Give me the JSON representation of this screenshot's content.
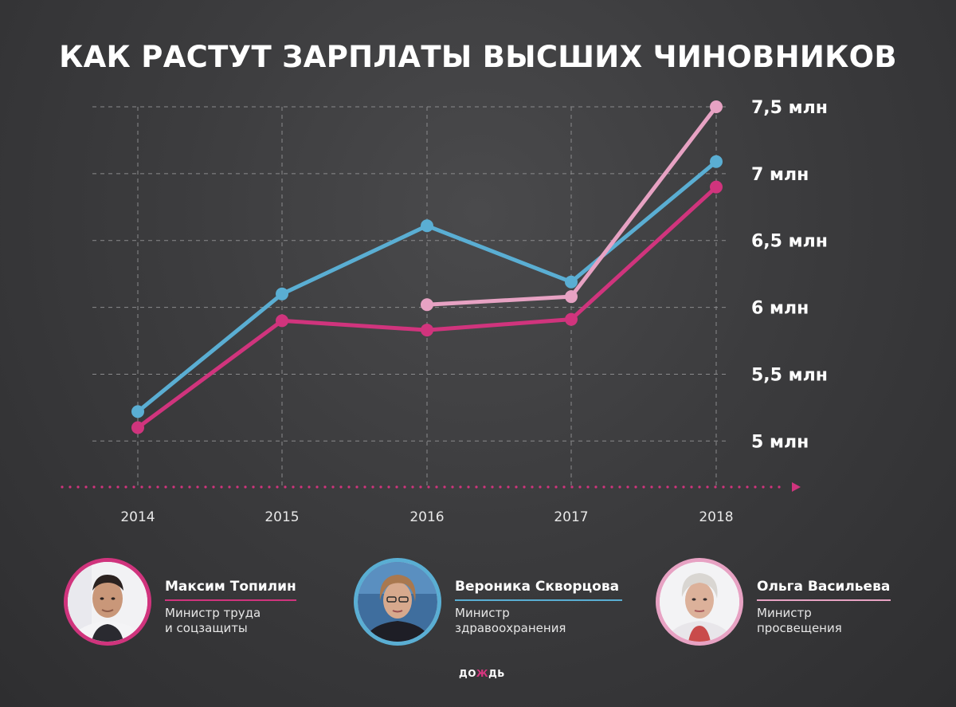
{
  "title": "КАК РАСТУТ ЗАРПЛАТЫ ВЫСШИХ ЧИНОВНИКОВ",
  "chart_data": {
    "type": "line",
    "x": [
      "2014",
      "2015",
      "2016",
      "2017",
      "2018"
    ],
    "y_ticks": [
      {
        "value": 5.0,
        "label": "5 млн"
      },
      {
        "value": 5.5,
        "label": "5,5 млн"
      },
      {
        "value": 6.0,
        "label": "6 млн"
      },
      {
        "value": 6.5,
        "label": "6,5 млн"
      },
      {
        "value": 7.0,
        "label": "7 млн"
      },
      {
        "value": 7.5,
        "label": "7,5 млн"
      }
    ],
    "ylim": [
      4.65,
      7.5
    ],
    "grid": true,
    "series": [
      {
        "name": "Вероника Скворцова",
        "color": "#5aaed3",
        "values": [
          5.22,
          6.1,
          6.61,
          6.19,
          7.09
        ]
      },
      {
        "name": "Максим Топилин",
        "color": "#d0347d",
        "values": [
          5.1,
          5.9,
          5.83,
          5.91,
          6.9
        ]
      },
      {
        "name": "Ольга Васильева",
        "color": "#e7a2c3",
        "values": [
          null,
          null,
          6.02,
          6.08,
          7.5
        ]
      }
    ]
  },
  "people": [
    {
      "name": "Максим Топилин",
      "role_line1": "Министр труда",
      "role_line2": "и соцзащиты",
      "color": "#d0347d"
    },
    {
      "name": "Вероника Скворцова",
      "role_line1": "Министр",
      "role_line2": "здравоохранения",
      "color": "#5aaed3"
    },
    {
      "name": "Ольга Васильева",
      "role_line1": "Министр",
      "role_line2": "просвещения",
      "color": "#e7a2c3"
    }
  ],
  "logo": {
    "part1": "ДО",
    "part2": "Ж",
    "part3": "ДЬ"
  }
}
